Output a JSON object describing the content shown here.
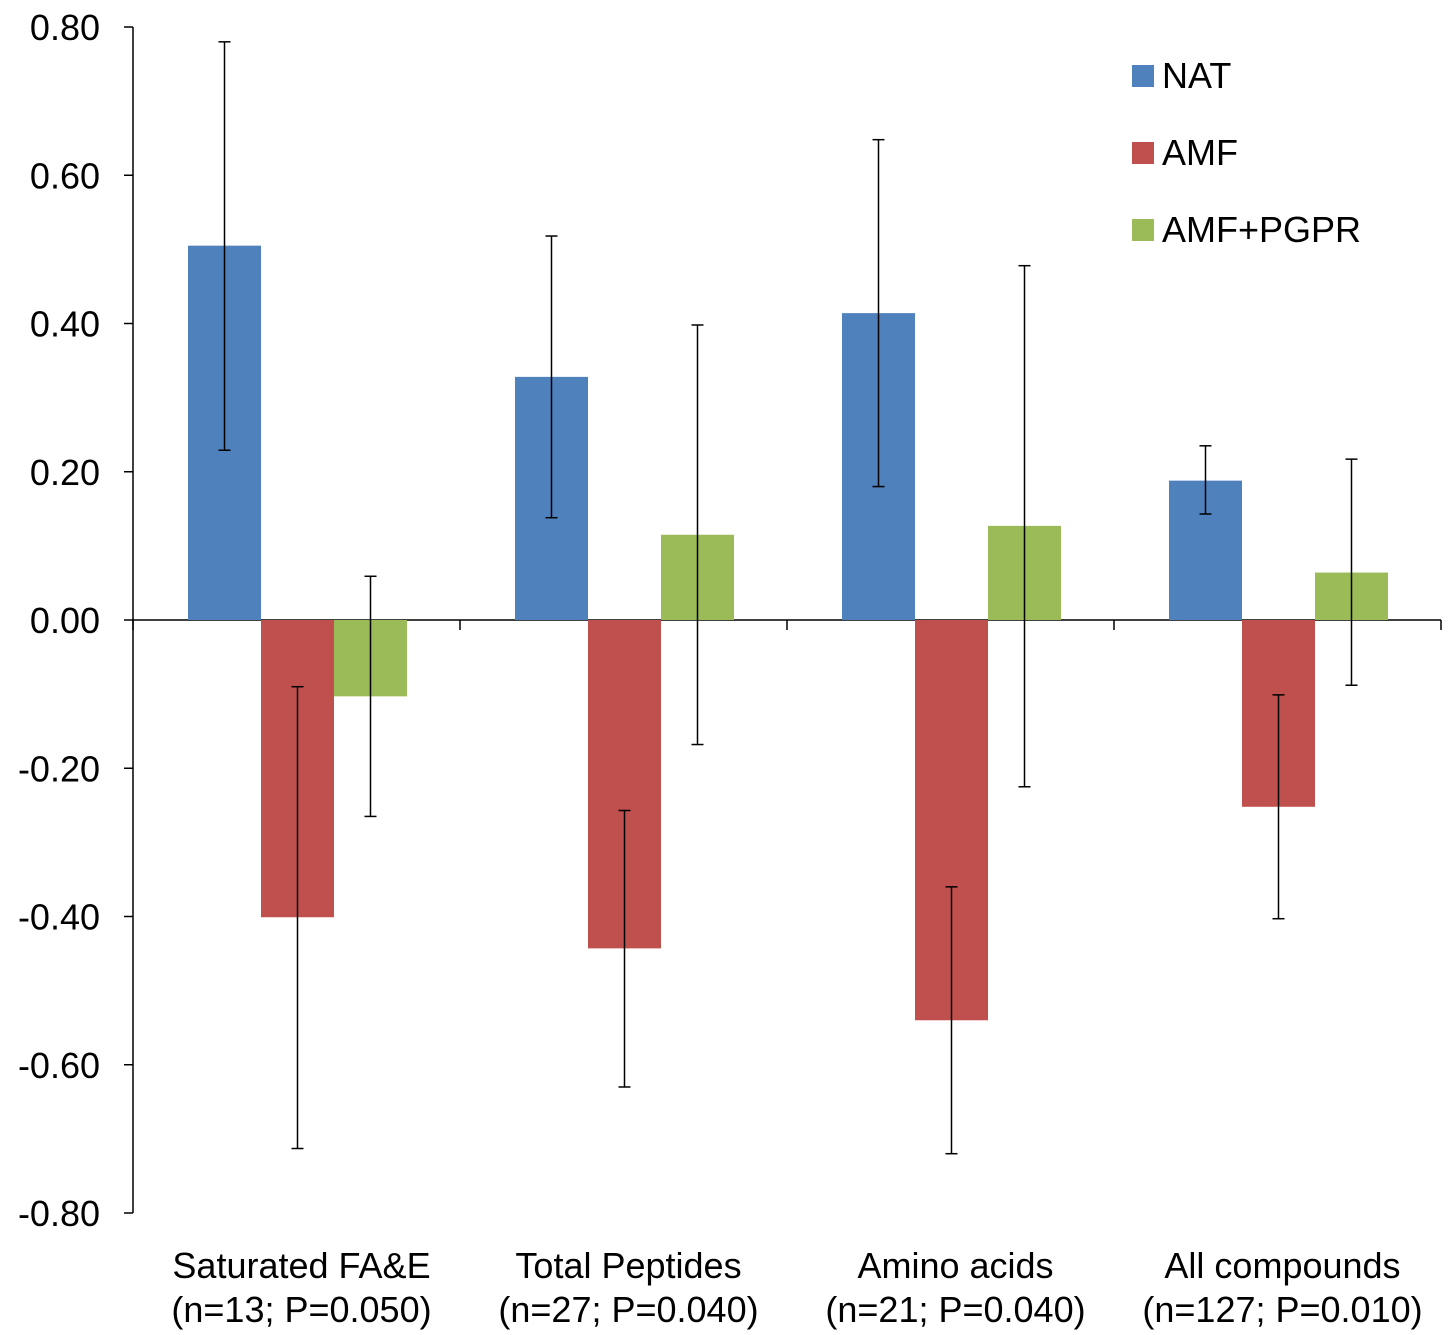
{
  "chart_data": {
    "type": "bar",
    "title": "",
    "xlabel": "",
    "ylabel": "",
    "ylim": [
      -0.8,
      0.8
    ],
    "yticks": [
      "0.80",
      "0.60",
      "0.40",
      "0.20",
      "0.00",
      "-0.20",
      "-0.40",
      "-0.60",
      "-0.80"
    ],
    "ytick_values": [
      0.8,
      0.6,
      0.4,
      0.2,
      0.0,
      -0.2,
      -0.4,
      -0.6,
      -0.8
    ],
    "categories": [
      {
        "line1": "Saturated FA&E",
        "line2": "(n=13; P=0.050)"
      },
      {
        "line1": "Total Peptides",
        "line2": "(n=27; P=0.040)"
      },
      {
        "line1": "Amino acids",
        "line2": "(n=21; P=0.040)"
      },
      {
        "line1": "All compounds",
        "line2": "(n=127; P=0.010)"
      }
    ],
    "series": [
      {
        "name": "NAT",
        "color": "#4f81bd",
        "values": [
          0.505,
          0.328,
          0.414,
          0.188
        ],
        "err_low": [
          0.229,
          0.138,
          0.18,
          0.143
        ],
        "err_high": [
          0.78,
          0.518,
          0.648,
          0.235
        ]
      },
      {
        "name": "AMF",
        "color": "#c0504d",
        "values": [
          -0.401,
          -0.443,
          -0.54,
          -0.252
        ],
        "err_low": [
          -0.713,
          -0.63,
          -0.72,
          -0.403
        ],
        "err_high": [
          -0.09,
          -0.257,
          -0.36,
          -0.101
        ]
      },
      {
        "name": "AMF+PGPR",
        "color": "#9bbb59",
        "values": [
          -0.103,
          0.115,
          0.127,
          0.064
        ],
        "err_low": [
          -0.265,
          -0.168,
          -0.225,
          -0.088
        ],
        "err_high": [
          0.059,
          0.398,
          0.478,
          0.217
        ]
      }
    ],
    "legend_position": "top-right",
    "grid": false
  }
}
